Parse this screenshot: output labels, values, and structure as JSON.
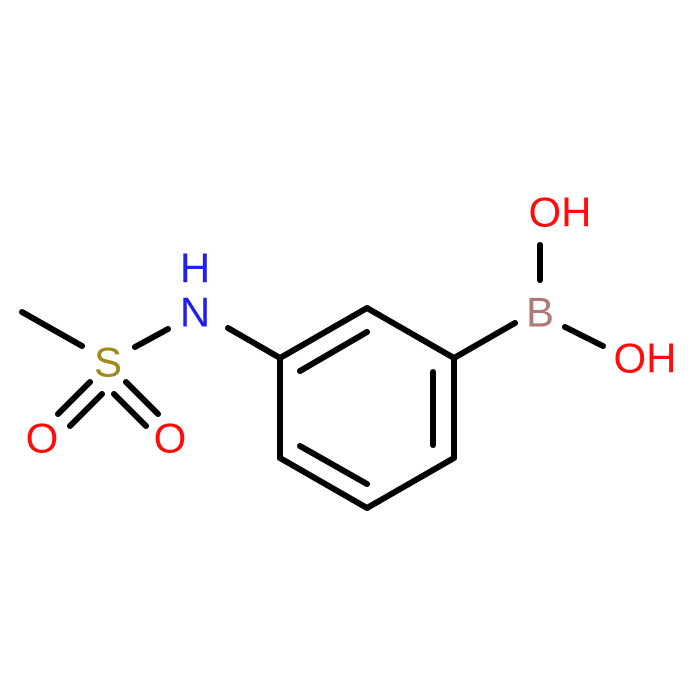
{
  "atoms": {
    "h": "H",
    "n": "N",
    "s": "S",
    "o_left": "O",
    "o_right": "O",
    "b": "B",
    "oh_top": "OH",
    "oh_right": "OH"
  }
}
